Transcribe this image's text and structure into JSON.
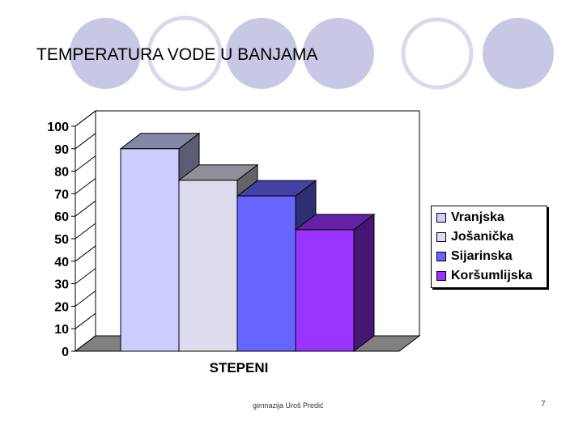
{
  "slide": {
    "title": "TEMPERATURA VODE U BANJAMA",
    "footer_text": "gimnazija Uroš Predić",
    "page_number": "7",
    "circle_fill": "#c8c8e6",
    "circle_ring": "#d9d9ec"
  },
  "chart_data": {
    "type": "bar",
    "categories": [
      "STEPENI"
    ],
    "series": [
      {
        "name": "Vranjska",
        "values": [
          90
        ],
        "color": "#ccccff"
      },
      {
        "name": "Jošanička",
        "values": [
          76
        ],
        "color": "#dcdcec"
      },
      {
        "name": "Sijarinska",
        "values": [
          69
        ],
        "color": "#6666ff"
      },
      {
        "name": "Koršumlijska",
        "values": [
          54
        ],
        "color": "#9933ff"
      }
    ],
    "xlabel": "STEPENI",
    "ylim": [
      0,
      100
    ],
    "yticks": [
      0,
      10,
      20,
      30,
      40,
      50,
      60,
      70,
      80,
      90,
      100
    ],
    "legend": "right",
    "grid": false,
    "three_d": true
  }
}
